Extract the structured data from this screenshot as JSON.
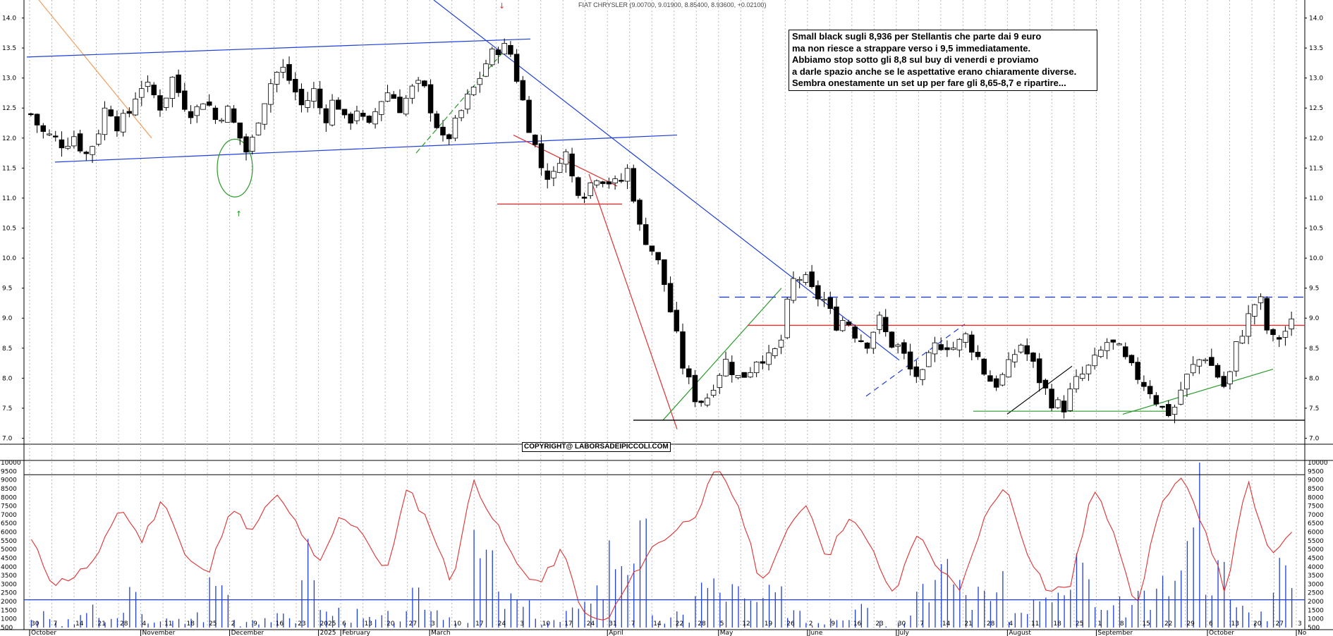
{
  "chart_data": [
    {
      "type": "candlestick",
      "title": "FIAT CHRYSLER (9.00700, 9.01900, 8.85400, 8.93600, +0.02100)",
      "ylim": [
        6.9,
        14.3
      ],
      "yticks": [
        7.0,
        7.5,
        8.0,
        8.5,
        9.0,
        9.5,
        10.0,
        10.5,
        11.0,
        11.5,
        12.0,
        12.5,
        13.0,
        13.5,
        14.0
      ],
      "x_axis_ticks": [
        "30",
        "7",
        "14",
        "21",
        "28",
        "4",
        "11",
        "18",
        "25",
        "2",
        "9",
        "16",
        "23",
        "2025",
        "6",
        "13",
        "20",
        "27",
        "3",
        "10",
        "17",
        "24",
        "3",
        "10",
        "17",
        "24",
        "31",
        "7",
        "14",
        "22",
        "28",
        "5",
        "12",
        "19",
        "26",
        "2",
        "9",
        "16",
        "23",
        "30",
        "7",
        "14",
        "21",
        "28",
        "4",
        "11",
        "18",
        "25",
        "1",
        "8",
        "15",
        "22",
        "29",
        "6",
        "13",
        "20",
        "27",
        "3"
      ],
      "month_labels": [
        "October",
        "November",
        "December",
        "2025",
        "February",
        "March",
        "April",
        "May",
        "June",
        "July",
        "August",
        "September",
        "October",
        "No"
      ],
      "close_path": [
        12.4,
        12.1,
        12.0,
        11.9,
        12.05,
        11.7,
        12.0,
        12.6,
        12.2,
        12.4,
        12.9,
        12.8,
        12.5,
        13.0,
        12.6,
        12.4,
        12.7,
        12.3,
        12.5,
        12.1,
        11.7,
        12.4,
        12.9,
        13.2,
        12.9,
        12.5,
        12.8,
        12.3,
        12.7,
        12.2,
        12.5,
        12.1,
        12.6,
        12.8,
        12.5,
        12.8,
        12.9,
        12.4,
        11.9,
        12.2,
        12.6,
        12.9,
        13.3,
        13.5,
        13.5,
        12.8,
        12.1,
        11.5,
        11.3,
        11.9,
        11.2,
        11.1,
        11.4,
        11.3,
        11.2,
        11.5,
        10.5,
        10.2,
        9.8,
        9.0,
        8.2,
        7.7,
        7.6,
        8.0,
        8.3,
        8.0,
        8.1,
        8.4,
        8.3,
        8.6,
        9.6,
        9.7,
        9.4,
        9.3,
        8.9,
        9.0,
        8.7,
        8.6,
        9.0,
        8.6,
        8.5,
        8.1,
        8.0,
        8.5,
        8.6,
        8.5,
        8.7,
        8.4,
        8.0,
        7.9,
        8.2,
        8.6,
        8.3,
        7.9,
        7.6,
        7.5,
        7.9,
        8.1,
        8.3,
        8.6,
        8.5,
        8.2,
        8.0,
        7.8,
        7.5,
        7.4,
        7.9,
        8.2,
        8.4,
        8.1,
        7.8,
        8.6,
        9.0,
        9.4,
        8.6,
        8.7,
        8.9
      ],
      "annotations": [
        "Small black sugli 8,936 per Stellantis che parte dai 9 euro",
        "ma non riesce a strappare verso i 9,5 immediatamente.",
        "Abbiamo stop sotto gli 8,8 sul buy di venerdi e proviamo",
        "a darle spazio anche se le aspettative erano chiaramente diverse.",
        "Sembra onestamente un set up per fare gli 8,65-8,7 e ripartire..."
      ],
      "copyright": "COPYRIGHT@ LABORSADEIPICCOLI.COM",
      "horizontal_levels": [
        {
          "value": 9.35,
          "color": "#1f3fd8",
          "style": "dashed"
        },
        {
          "value": 8.88,
          "color": "#e03030",
          "style": "solid"
        },
        {
          "value": 7.3,
          "color": "#000000",
          "style": "solid"
        },
        {
          "value": 10.9,
          "color": "#e03030",
          "style": "solid"
        }
      ]
    },
    {
      "type": "bar+line",
      "ylim": [
        500,
        10000
      ],
      "yticks": [
        500,
        1000,
        1500,
        2000,
        2500,
        3000,
        3500,
        4000,
        4500,
        5000,
        5500,
        6000,
        6500,
        7000,
        7500,
        8000,
        8500,
        9000,
        9500,
        10000
      ],
      "oscillator_keypoints": [
        5500,
        3000,
        3500,
        4500,
        7500,
        5500,
        8000,
        4500,
        3500,
        7500,
        6000,
        8200,
        6500,
        4000,
        7000,
        6000,
        3500,
        8500,
        6500,
        3000,
        9000,
        6500,
        4000,
        3000,
        5000,
        1200,
        800,
        3000,
        5000,
        6000,
        7000,
        9600,
        7500,
        3000,
        5500,
        7800,
        4500,
        7000,
        5000,
        2200,
        6000,
        4000,
        2500,
        6500,
        8800,
        5000,
        2500,
        3000,
        8500,
        6000,
        1500,
        7500,
        9000,
        6500,
        2500,
        9000,
        4500,
        6200
      ],
      "volume_keypoints": [
        1200,
        800,
        1500,
        1000,
        2400,
        1100,
        900,
        1300,
        3200,
        1000,
        1200,
        1100,
        4800,
        1500,
        1300,
        1000,
        1200,
        2300,
        1600,
        900,
        5000,
        2200,
        1700,
        900,
        1400,
        3000,
        5200,
        5800,
        1000,
        1200,
        3100,
        2800,
        2000,
        2400,
        1800,
        1000,
        1500,
        2200,
        900,
        1300,
        3500,
        3800,
        2500,
        3000,
        1400,
        2000,
        2600,
        4200,
        1500,
        1900,
        2200,
        3300,
        9600,
        4000,
        2000,
        1400,
        4200,
        2300
      ],
      "ref_line": 2100,
      "ref_line_top": 9300
    }
  ],
  "colors": {
    "up_candle": "#ffffff",
    "down_candle": "#000000",
    "trend_blue": "#1f3fd8",
    "trend_red": "#e03030",
    "trend_green": "#2a9a2a",
    "trend_orange": "#f0a060",
    "oscillator": "#e03030",
    "volume": "#1f3fd8"
  },
  "markers": {
    "up_arrow": "↑",
    "down_arrow": "↓"
  }
}
